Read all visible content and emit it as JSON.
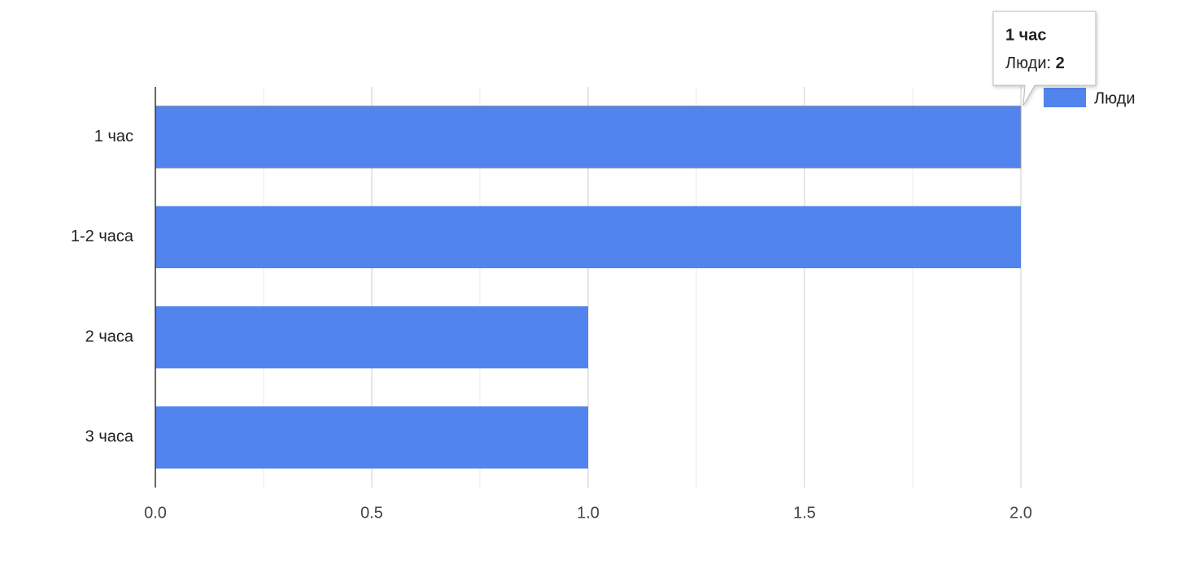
{
  "chart_data": {
    "type": "bar",
    "orientation": "horizontal",
    "categories": [
      "1 час",
      "1-2 часа",
      "2 часа",
      "3 часа"
    ],
    "series": [
      {
        "name": "Люди",
        "color": "#5184ec",
        "values": [
          2,
          2,
          1,
          1
        ]
      }
    ],
    "xlim": [
      0,
      2
    ],
    "xticks": [
      {
        "value": 0,
        "label": "0.0"
      },
      {
        "value": 0.5,
        "label": "0.5"
      },
      {
        "value": 1,
        "label": "1.0"
      },
      {
        "value": 1.5,
        "label": "1.5"
      },
      {
        "value": 2,
        "label": "2.0"
      }
    ],
    "minor_xticks": [
      0.25,
      0.75,
      1.25,
      1.75
    ],
    "grid": true,
    "legend": "top-right",
    "tooltip": {
      "title": "1 час",
      "label": "Люди:",
      "value": 2
    }
  }
}
